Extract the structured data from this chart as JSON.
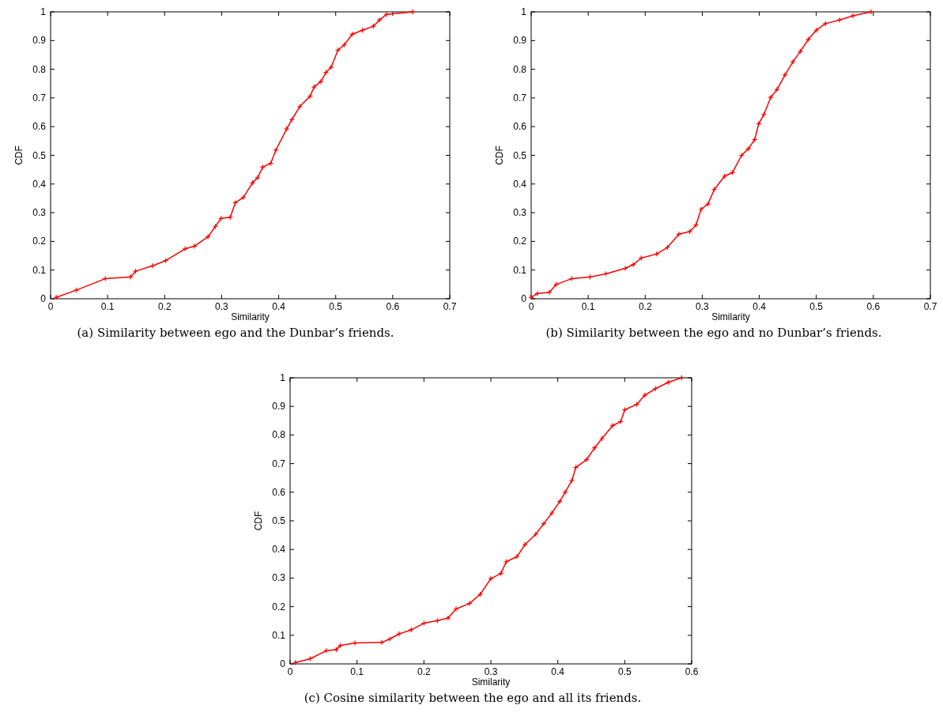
{
  "chart_data": [
    {
      "type": "line",
      "xlabel": "Similarity",
      "ylabel": "CDF",
      "annotations": [
        "(a) Similarity between ego and the Dunbar’s friends."
      ],
      "xlim": [
        0,
        0.7
      ],
      "ylim": [
        0,
        1
      ],
      "xticks": [
        0,
        0.1,
        0.2,
        0.3,
        0.4,
        0.5,
        0.6,
        0.7
      ],
      "yticks": [
        0,
        0.1,
        0.2,
        0.3,
        0.4,
        0.5,
        0.6,
        0.7,
        0.8,
        0.9,
        1
      ],
      "grid": false,
      "marker": "cross",
      "line_style": "solid",
      "series": [
        {
          "color": "#ff0000",
          "x": [
            0.01,
            0.045,
            0.096,
            0.14,
            0.149,
            0.179,
            0.202,
            0.236,
            0.252,
            0.276,
            0.289,
            0.299,
            0.315,
            0.324,
            0.338,
            0.354,
            0.363,
            0.372,
            0.386,
            0.395,
            0.414,
            0.423,
            0.437,
            0.455,
            0.462,
            0.474,
            0.483,
            0.492,
            0.504,
            0.515,
            0.529,
            0.547,
            0.566,
            0.577,
            0.589,
            0.635
          ],
          "values": [
            0.005,
            0.03,
            0.07,
            0.076,
            0.096,
            0.115,
            0.133,
            0.174,
            0.183,
            0.216,
            0.252,
            0.28,
            0.284,
            0.335,
            0.353,
            0.404,
            0.422,
            0.459,
            0.472,
            0.518,
            0.592,
            0.624,
            0.67,
            0.706,
            0.738,
            0.757,
            0.789,
            0.807,
            0.867,
            0.885,
            0.922,
            0.936,
            0.95,
            0.972,
            0.991,
            1.0
          ]
        }
      ]
    },
    {
      "type": "line",
      "xlabel": "Similarity",
      "ylabel": "CDF",
      "annotations": [
        "(b) Similarity between the ego and no Dunbar’s friends."
      ],
      "xlim": [
        0,
        0.7
      ],
      "ylim": [
        0,
        1
      ],
      "xticks": [
        0,
        0.1,
        0.2,
        0.3,
        0.4,
        0.5,
        0.6,
        0.7
      ],
      "yticks": [
        0,
        0.1,
        0.2,
        0.3,
        0.4,
        0.5,
        0.6,
        0.7,
        0.8,
        0.9,
        1
      ],
      "grid": false,
      "marker": "cross",
      "line_style": "solid",
      "series": [
        {
          "color": "#ff0000",
          "x": [
            0,
            0.011,
            0.032,
            0.044,
            0.071,
            0.103,
            0.131,
            0.165,
            0.179,
            0.193,
            0.22,
            0.239,
            0.259,
            0.278,
            0.289,
            0.298,
            0.31,
            0.321,
            0.339,
            0.353,
            0.369,
            0.381,
            0.392,
            0.399,
            0.408,
            0.42,
            0.431,
            0.445,
            0.459,
            0.472,
            0.486,
            0.5,
            0.516,
            0.541,
            0.564,
            0.596
          ],
          "values": [
            0.005,
            0.018,
            0.023,
            0.05,
            0.07,
            0.076,
            0.087,
            0.106,
            0.119,
            0.142,
            0.156,
            0.179,
            0.225,
            0.234,
            0.257,
            0.312,
            0.33,
            0.381,
            0.427,
            0.44,
            0.5,
            0.523,
            0.555,
            0.61,
            0.642,
            0.702,
            0.729,
            0.78,
            0.826,
            0.862,
            0.904,
            0.936,
            0.959,
            0.972,
            0.986,
            1.0
          ]
        }
      ]
    },
    {
      "type": "line",
      "xlabel": "Similarity",
      "ylabel": "CDF",
      "annotations": [
        "(c) Cosine similarity between the ego and all its friends."
      ],
      "xlim": [
        0,
        0.6
      ],
      "ylim": [
        0,
        1
      ],
      "xticks": [
        0,
        0.1,
        0.2,
        0.3,
        0.4,
        0.5,
        0.6
      ],
      "yticks": [
        0,
        0.1,
        0.2,
        0.3,
        0.4,
        0.5,
        0.6,
        0.7,
        0.8,
        0.9,
        1
      ],
      "grid": false,
      "marker": "cross",
      "line_style": "solid",
      "series": [
        {
          "color": "#ff0000",
          "x": [
            0.008,
            0.03,
            0.054,
            0.069,
            0.075,
            0.097,
            0.137,
            0.149,
            0.163,
            0.181,
            0.2,
            0.22,
            0.236,
            0.248,
            0.268,
            0.284,
            0.3,
            0.315,
            0.323,
            0.339,
            0.351,
            0.367,
            0.379,
            0.391,
            0.403,
            0.411,
            0.421,
            0.427,
            0.443,
            0.455,
            0.466,
            0.482,
            0.494,
            0.5,
            0.518,
            0.53,
            0.546,
            0.565,
            0.585
          ],
          "values": [
            0.005,
            0.018,
            0.046,
            0.05,
            0.064,
            0.073,
            0.075,
            0.087,
            0.105,
            0.119,
            0.142,
            0.151,
            0.16,
            0.192,
            0.211,
            0.243,
            0.298,
            0.316,
            0.357,
            0.375,
            0.417,
            0.453,
            0.49,
            0.527,
            0.568,
            0.6,
            0.641,
            0.687,
            0.714,
            0.755,
            0.788,
            0.833,
            0.847,
            0.888,
            0.907,
            0.939,
            0.962,
            0.984,
            1.0
          ]
        }
      ]
    }
  ]
}
